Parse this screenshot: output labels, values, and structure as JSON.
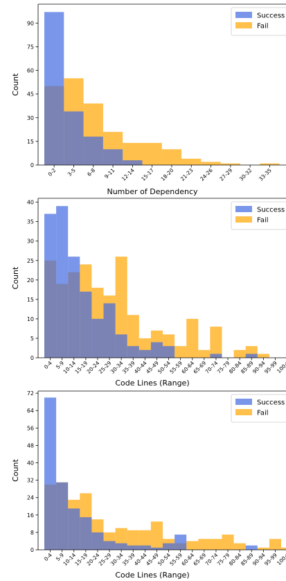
{
  "colors": {
    "success": "#4169e1",
    "fail": "#ffa500",
    "success_alpha": 0.7,
    "fail_alpha": 0.7
  },
  "chart_data": [
    {
      "type": "bar",
      "stacked": false,
      "overlay": true,
      "xlabel": "Number of Dependency",
      "ylabel": "Count",
      "categories": [
        "0-2",
        "3-5",
        "6-8",
        "9-11",
        "12-14",
        "15-17",
        "18-20",
        "21-23",
        "24-26",
        "27-29",
        "30-32",
        "33-35"
      ],
      "series": [
        {
          "name": "Success",
          "values": [
            97,
            34,
            18,
            10,
            3,
            0,
            0,
            0,
            0,
            0,
            0,
            0
          ]
        },
        {
          "name": "Fail",
          "values": [
            50,
            55,
            39,
            21,
            14,
            14,
            10,
            4,
            2,
            1,
            0,
            1
          ]
        }
      ],
      "yticks": [
        0,
        15,
        30,
        45,
        60,
        75,
        90
      ],
      "ylim": [
        0,
        102
      ],
      "legend": "top-right"
    },
    {
      "type": "bar",
      "stacked": false,
      "overlay": true,
      "xlabel": "Code Lines (Range)",
      "ylabel": "Count",
      "categories": [
        "0-4",
        "5-9",
        "10-14",
        "15-19",
        "20-24",
        "25-29",
        "30-34",
        "35-39",
        "40-44",
        "45-49",
        "50-54",
        "55-59",
        "60-64",
        "65-69",
        "70-74",
        "75-79",
        "80-84",
        "85-89",
        "90-94",
        "95-99",
        "100+"
      ],
      "series": [
        {
          "name": "Success",
          "values": [
            37,
            39,
            26,
            17,
            10,
            14,
            6,
            3,
            2,
            4,
            3,
            0,
            0,
            0,
            1,
            0,
            0,
            1,
            0,
            0,
            0
          ]
        },
        {
          "name": "Fail",
          "values": [
            25,
            19,
            22,
            24,
            18,
            16,
            26,
            11,
            5,
            7,
            6,
            3,
            10,
            2,
            8,
            0,
            2,
            3,
            1,
            0,
            0
          ]
        }
      ],
      "yticks": [
        0,
        5,
        10,
        15,
        20,
        25,
        30,
        35,
        40
      ],
      "ylim": [
        0,
        41
      ],
      "legend": "top-right"
    },
    {
      "type": "bar",
      "stacked": false,
      "overlay": true,
      "xlabel": "Code Lines (Range)",
      "ylabel": "Count",
      "categories": [
        "0-4",
        "5-9",
        "10-14",
        "15-19",
        "20-24",
        "25-29",
        "30-34",
        "35-39",
        "40-44",
        "45-49",
        "50-54",
        "55-59",
        "60-64",
        "65-69",
        "70-74",
        "75-79",
        "80-84",
        "85-89",
        "90-94",
        "95-99",
        "100+"
      ],
      "series": [
        {
          "name": "Success",
          "values": [
            70,
            31,
            19,
            15,
            8,
            4,
            3,
            2,
            2,
            1,
            3,
            7,
            0,
            0,
            0,
            0,
            0,
            2,
            0,
            0,
            0
          ]
        },
        {
          "name": "Fail",
          "values": [
            30,
            31,
            23,
            26,
            14,
            8,
            10,
            9,
            9,
            13,
            5,
            3,
            4,
            5,
            5,
            7,
            3,
            0,
            1,
            5,
            1
          ]
        }
      ],
      "yticks": [
        0,
        8,
        16,
        24,
        32,
        40,
        48,
        56,
        64,
        72
      ],
      "ylim": [
        0,
        73
      ],
      "legend": "top-right"
    }
  ]
}
